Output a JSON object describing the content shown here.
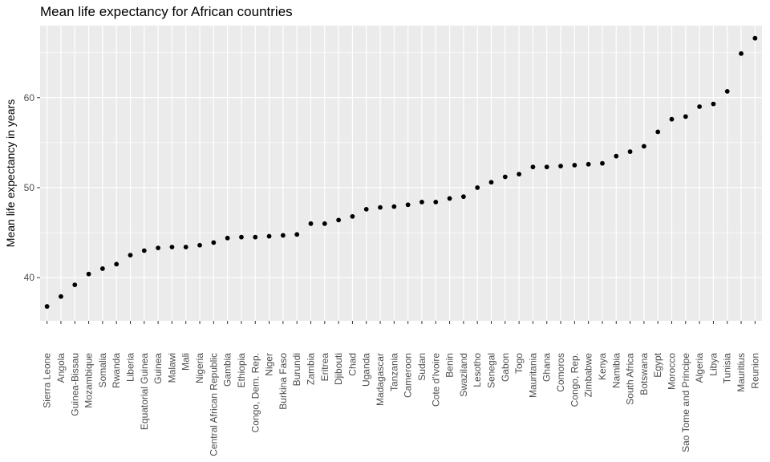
{
  "chart_data": {
    "type": "scatter",
    "title": "Mean life expectancy for African countries",
    "xlabel": "",
    "ylabel": "Mean life expectancy in years",
    "ylim": [
      35.2,
      68.0
    ],
    "yticks": [
      40,
      50,
      60
    ],
    "grid": true,
    "legend": "none",
    "colors": {
      "panel": "#EBEBEB",
      "grid": "#FFFFFF",
      "point": "#000000",
      "tick": "#333333"
    },
    "categories": [
      "Sierra Leone",
      "Angola",
      "Guinea-Bissau",
      "Mozambique",
      "Somalia",
      "Rwanda",
      "Liberia",
      "Equatorial Guinea",
      "Guinea",
      "Malawi",
      "Mali",
      "Nigeria",
      "Central African Republic",
      "Gambia",
      "Ethiopia",
      "Congo, Dem. Rep.",
      "Niger",
      "Burkina Faso",
      "Burundi",
      "Zambia",
      "Eritrea",
      "Djibouti",
      "Chad",
      "Uganda",
      "Madagascar",
      "Tanzania",
      "Cameroon",
      "Sudan",
      "Cote d'Ivoire",
      "Benin",
      "Swaziland",
      "Lesotho",
      "Senegal",
      "Gabon",
      "Togo",
      "Mauritania",
      "Ghana",
      "Comoros",
      "Congo, Rep.",
      "Zimbabwe",
      "Kenya",
      "Namibia",
      "South Africa",
      "Botswana",
      "Egypt",
      "Morocco",
      "Sao Tome and Principe",
      "Algeria",
      "Libya",
      "Tunisia",
      "Mauritius",
      "Reunion"
    ],
    "values": [
      36.8,
      37.9,
      39.2,
      40.4,
      41.0,
      41.5,
      42.5,
      43.0,
      43.3,
      43.4,
      43.4,
      43.6,
      43.9,
      44.4,
      44.5,
      44.5,
      44.6,
      44.7,
      44.8,
      46.0,
      46.0,
      46.4,
      46.8,
      47.6,
      47.8,
      47.9,
      48.1,
      48.4,
      48.4,
      48.8,
      49.0,
      50.0,
      50.6,
      51.2,
      51.5,
      52.3,
      52.3,
      52.4,
      52.5,
      52.6,
      52.7,
      53.5,
      54.0,
      54.6,
      56.2,
      57.6,
      57.9,
      59.0,
      59.3,
      60.7,
      64.9,
      66.6
    ]
  }
}
